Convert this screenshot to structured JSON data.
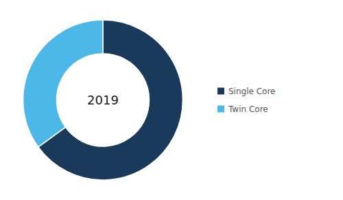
{
  "chart_data": {
    "type": "pie",
    "categories": [
      "Single Core",
      "Twin Core"
    ],
    "values": [
      65,
      35
    ],
    "colors": [
      "#1a3a5c",
      "#4db8e8"
    ],
    "annotation": "2019",
    "legend": "right"
  }
}
